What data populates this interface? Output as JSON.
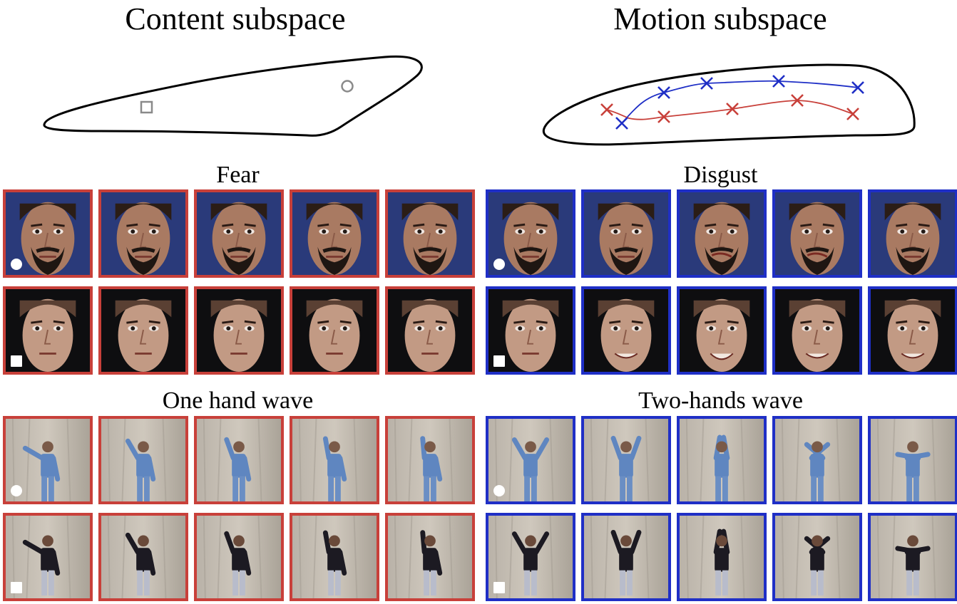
{
  "figure": {
    "left_title": "Content subspace",
    "right_title": "Motion subspace"
  },
  "colors": {
    "red": "#c8403a",
    "blue": "#1f2fc6",
    "marker_gray": "#8a8a8a"
  },
  "groups": [
    {
      "id": "fear",
      "label": "Fear",
      "color": "red",
      "kind": "face",
      "rows": [
        {
          "subject": "bearded-man",
          "marker": "circle",
          "frames": 5
        },
        {
          "subject": "woman",
          "marker": "square",
          "frames": 5
        }
      ]
    },
    {
      "id": "disgust",
      "label": "Disgust",
      "color": "blue",
      "kind": "face",
      "rows": [
        {
          "subject": "bearded-man",
          "marker": "circle",
          "frames": 5
        },
        {
          "subject": "woman",
          "marker": "square",
          "frames": 5
        }
      ]
    },
    {
      "id": "one-hand-wave",
      "label": "One hand wave",
      "color": "red",
      "kind": "body",
      "rows": [
        {
          "subject": "person-in-blue",
          "marker": "circle",
          "frames": 5
        },
        {
          "subject": "person-in-black",
          "marker": "square",
          "frames": 5
        }
      ]
    },
    {
      "id": "two-hands-wave",
      "label": "Two-hands wave",
      "color": "blue",
      "kind": "body",
      "rows": [
        {
          "subject": "person-in-blue",
          "marker": "circle",
          "frames": 5
        },
        {
          "subject": "person-in-black",
          "marker": "square",
          "frames": 5
        }
      ]
    }
  ]
}
